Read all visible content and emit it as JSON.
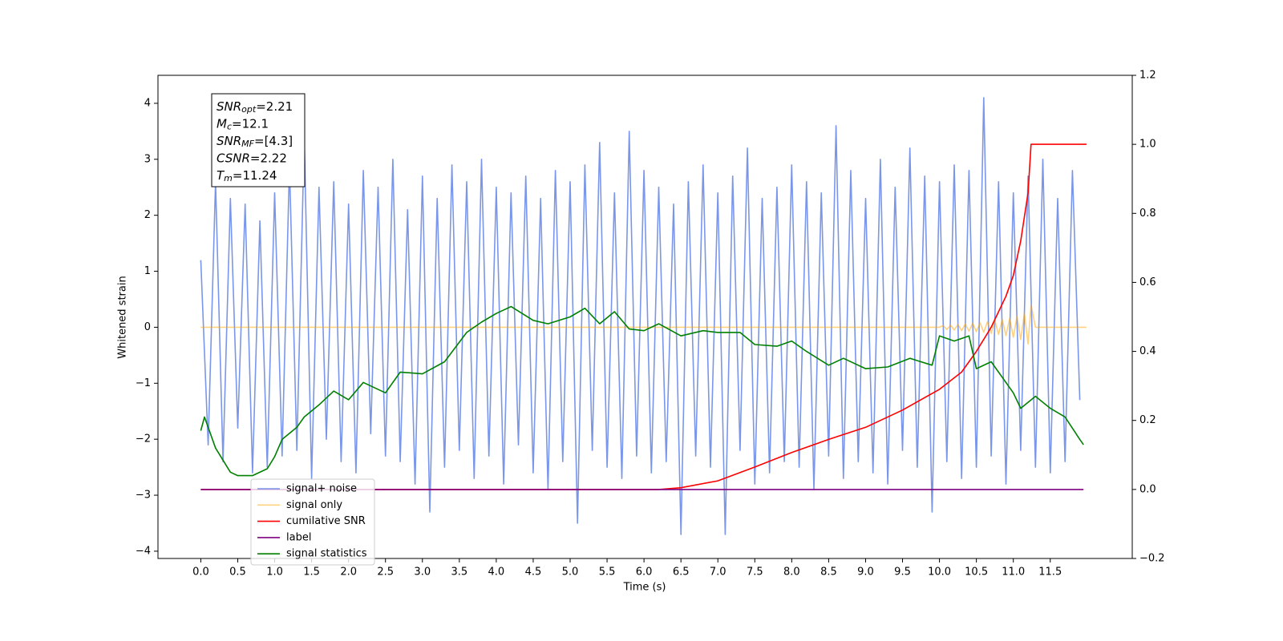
{
  "chart_data": {
    "type": "line",
    "xlabel": "Time (s)",
    "ylabel": "Whitened strain",
    "xlim": [
      -0.58,
      12.61
    ],
    "ylim": [
      -4.13,
      4.5
    ],
    "y2lim": [
      -0.2,
      1.2
    ],
    "xticks": [
      {
        "value": 0,
        "label": "0.0"
      },
      0.5,
      {
        "value": 1,
        "label": "1.0"
      },
      1.5,
      {
        "value": 2,
        "label": "2.0"
      },
      2.5,
      {
        "value": 3,
        "label": "3.0"
      },
      3.5,
      {
        "value": 4,
        "label": "4.0"
      },
      4.5,
      {
        "value": 5,
        "label": "5.0"
      },
      5.5,
      {
        "value": 6,
        "label": "6.0"
      },
      6.5,
      {
        "value": 7,
        "label": "7.0"
      },
      7.5,
      {
        "value": 8,
        "label": "8.0"
      },
      8.5,
      {
        "value": 9,
        "label": "9.0"
      },
      9.5,
      {
        "value": 10,
        "label": "10.0"
      },
      10.5,
      {
        "value": 11,
        "label": "11.0"
      },
      11.5
    ],
    "yticks": [
      {
        "value": -4,
        "label": "−4"
      },
      {
        "value": -3,
        "label": "−3"
      },
      {
        "value": -2,
        "label": "−2"
      },
      {
        "value": -1,
        "label": "−1"
      },
      0,
      1,
      2,
      3,
      4
    ],
    "y2ticks": [
      {
        "value": -0.2,
        "label": "−0.2"
      },
      {
        "value": 0,
        "label": "0.0"
      },
      0.2,
      0.4,
      0.6,
      0.8,
      {
        "value": 1,
        "label": "1.0"
      },
      1.2
    ],
    "grid": false,
    "legend": "lower left",
    "annotation": [
      {
        "symbol": "SNR",
        "sub": "opt",
        "text": "=2.21"
      },
      {
        "symbol": "M",
        "sub": "c",
        "text": "=12.1"
      },
      {
        "symbol": "SNR",
        "sub": "MF",
        "text": "=[4.3]"
      },
      {
        "symbol": "CSNR",
        "text": "=2.22"
      },
      {
        "symbol": "T",
        "sub": "m",
        "text": "=11.24"
      }
    ],
    "series": [
      {
        "name": "signal+ noise",
        "color": "royalblue",
        "alpha": 0.7,
        "x": [
          0,
          0.1,
          0.2,
          0.3,
          0.4,
          0.5,
          0.6,
          0.7,
          0.8,
          0.9,
          1,
          1.1,
          1.2,
          1.3,
          1.4,
          1.5,
          1.6,
          1.7,
          1.8,
          1.9,
          2,
          2.1,
          2.2,
          2.3,
          2.4,
          2.5,
          2.6,
          2.7,
          2.8,
          2.9,
          3,
          3.1,
          3.2,
          3.3,
          3.4,
          3.5,
          3.6,
          3.7,
          3.8,
          3.9,
          4,
          4.1,
          4.2,
          4.3,
          4.4,
          4.5,
          4.6,
          4.7,
          4.8,
          4.9,
          5,
          5.1,
          5.2,
          5.3,
          5.4,
          5.5,
          5.6,
          5.7,
          5.8,
          5.9,
          6,
          6.1,
          6.2,
          6.3,
          6.4,
          6.5,
          6.6,
          6.7,
          6.8,
          6.9,
          7,
          7.1,
          7.2,
          7.3,
          7.4,
          7.5,
          7.6,
          7.7,
          7.8,
          7.9,
          8,
          8.1,
          8.2,
          8.3,
          8.4,
          8.5,
          8.6,
          8.7,
          8.8,
          8.9,
          9,
          9.1,
          9.2,
          9.3,
          9.4,
          9.5,
          9.6,
          9.7,
          9.8,
          9.9,
          10,
          10.1,
          10.2,
          10.3,
          10.4,
          10.5,
          10.6,
          10.7,
          10.8,
          10.9,
          11,
          11.1,
          11.2,
          11.3,
          11.4,
          11.5,
          11.6,
          11.7,
          11.8,
          11.9
        ],
        "values": [
          1.2,
          -2.1,
          2.6,
          -2.4,
          2.3,
          -1.8,
          2.2,
          -2.6,
          1.9,
          -2.5,
          2.4,
          -2.3,
          2.9,
          -2.2,
          3.4,
          -2.7,
          2.5,
          -2.0,
          2.6,
          -2.4,
          2.2,
          -2.6,
          2.8,
          -1.9,
          2.5,
          -2.3,
          3.0,
          -2.4,
          2.1,
          -2.8,
          2.7,
          -3.3,
          2.3,
          -2.5,
          2.9,
          -2.2,
          2.6,
          -2.7,
          3.0,
          -2.3,
          2.5,
          -2.8,
          2.4,
          -2.1,
          2.7,
          -2.6,
          2.3,
          -2.9,
          2.8,
          -2.4,
          2.6,
          -3.5,
          2.9,
          -2.2,
          3.3,
          -2.5,
          2.4,
          -2.7,
          3.5,
          -2.3,
          2.8,
          -2.6,
          2.5,
          -2.4,
          2.2,
          -3.7,
          2.6,
          -2.3,
          2.9,
          -2.5,
          2.4,
          -3.7,
          2.7,
          -2.2,
          3.2,
          -2.8,
          2.3,
          -2.6,
          2.5,
          -2.4,
          2.9,
          -2.5,
          2.6,
          -2.9,
          2.4,
          -2.3,
          3.6,
          -2.7,
          2.8,
          -2.4,
          2.3,
          -2.6,
          3.0,
          -2.8,
          2.5,
          -2.2,
          3.2,
          -2.5,
          2.7,
          -3.3,
          2.6,
          -2.4,
          2.9,
          -2.7,
          2.8,
          -2.5,
          4.1,
          -2.3,
          2.6,
          -2.8,
          2.4,
          -2.2,
          2.7,
          -2.5,
          3.0,
          -2.6,
          2.3,
          -2.4,
          2.8,
          -1.3
        ]
      },
      {
        "name": "signal only",
        "color": "orange",
        "alpha": 0.5,
        "x": [
          0,
          10.0,
          10.05,
          10.1,
          10.15,
          10.2,
          10.25,
          10.3,
          10.35,
          10.4,
          10.45,
          10.5,
          10.55,
          10.6,
          10.65,
          10.7,
          10.75,
          10.8,
          10.85,
          10.9,
          10.95,
          11.0,
          11.05,
          11.1,
          11.15,
          11.2,
          11.24,
          11.3,
          11.99
        ],
        "values": [
          0,
          0,
          0.03,
          -0.04,
          0.04,
          -0.05,
          0.05,
          -0.06,
          0.06,
          -0.07,
          0.07,
          -0.08,
          0.08,
          -0.09,
          0.1,
          -0.11,
          0.12,
          -0.13,
          0.14,
          -0.15,
          0.16,
          -0.18,
          0.2,
          -0.22,
          0.25,
          -0.3,
          0.4,
          0,
          0
        ]
      },
      {
        "name": "cumilative SNR",
        "color": "red",
        "axis": "y2",
        "x": [
          0,
          6.2,
          6.5,
          7.0,
          7.5,
          8.0,
          8.5,
          9.0,
          9.5,
          10.0,
          10.3,
          10.5,
          10.7,
          10.9,
          11.0,
          11.1,
          11.2,
          11.24,
          11.99
        ],
        "values": [
          0,
          0,
          0.005,
          0.025,
          0.065,
          0.107,
          0.145,
          0.18,
          0.23,
          0.29,
          0.34,
          0.4,
          0.47,
          0.56,
          0.62,
          0.72,
          0.86,
          1.0,
          1.0
        ]
      },
      {
        "name": "label",
        "color": "purple",
        "axis": "y2",
        "x": [
          0,
          11.95
        ],
        "values": [
          0,
          0
        ]
      },
      {
        "name": "signal statistics",
        "color": "green",
        "axis": "y2",
        "x": [
          0,
          0.05,
          0.2,
          0.4,
          0.5,
          0.7,
          0.9,
          1.0,
          1.1,
          1.3,
          1.4,
          1.6,
          1.8,
          2.0,
          2.2,
          2.5,
          2.7,
          3.0,
          3.3,
          3.6,
          3.8,
          4.0,
          4.2,
          4.5,
          4.7,
          5.0,
          5.2,
          5.4,
          5.6,
          5.8,
          6.0,
          6.2,
          6.5,
          6.8,
          7.0,
          7.3,
          7.5,
          7.8,
          8.0,
          8.2,
          8.5,
          8.7,
          9.0,
          9.3,
          9.6,
          9.9,
          10.0,
          10.2,
          10.4,
          10.5,
          10.7,
          11.0,
          11.1,
          11.3,
          11.5,
          11.7,
          11.9,
          11.95
        ],
        "values": [
          0.17,
          0.21,
          0.12,
          0.05,
          0.04,
          0.04,
          0.06,
          0.095,
          0.145,
          0.18,
          0.21,
          0.245,
          0.285,
          0.26,
          0.31,
          0.28,
          0.34,
          0.335,
          0.37,
          0.455,
          0.485,
          0.51,
          0.53,
          0.49,
          0.48,
          0.5,
          0.525,
          0.48,
          0.515,
          0.465,
          0.46,
          0.48,
          0.445,
          0.46,
          0.455,
          0.455,
          0.42,
          0.415,
          0.43,
          0.4,
          0.36,
          0.38,
          0.35,
          0.355,
          0.38,
          0.36,
          0.445,
          0.43,
          0.445,
          0.35,
          0.37,
          0.28,
          0.235,
          0.27,
          0.235,
          0.21,
          0.145,
          0.13
        ]
      }
    ]
  }
}
